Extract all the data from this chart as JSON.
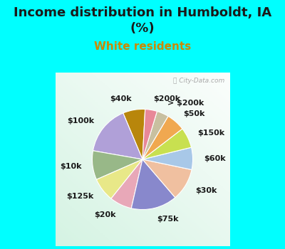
{
  "title": "Income distribution in Humboldt, IA\n(%)",
  "subtitle": "White residents",
  "background_cyan": "#00FFFF",
  "labels": [
    "$40k",
    "$100k",
    "$10k",
    "$125k",
    "$20k",
    "$75k",
    "$30k",
    "$60k",
    "$150k",
    "$50k",
    "> $200k",
    "$200k"
  ],
  "sizes": [
    6.5,
    14.5,
    8.5,
    7.0,
    6.5,
    13.5,
    9.5,
    6.5,
    6.0,
    5.5,
    3.5,
    3.5
  ],
  "colors": [
    "#b8860b",
    "#b0a0d8",
    "#98b888",
    "#e8e888",
    "#e8a8b8",
    "#8888cc",
    "#f0c0a0",
    "#a8c8e8",
    "#c8e050",
    "#f0a850",
    "#c8c0a0",
    "#e88898"
  ],
  "startangle": 87,
  "title_fontsize": 13,
  "subtitle_fontsize": 11,
  "label_fontsize": 8,
  "title_color": "#1a1a1a",
  "subtitle_color": "#cc8800"
}
